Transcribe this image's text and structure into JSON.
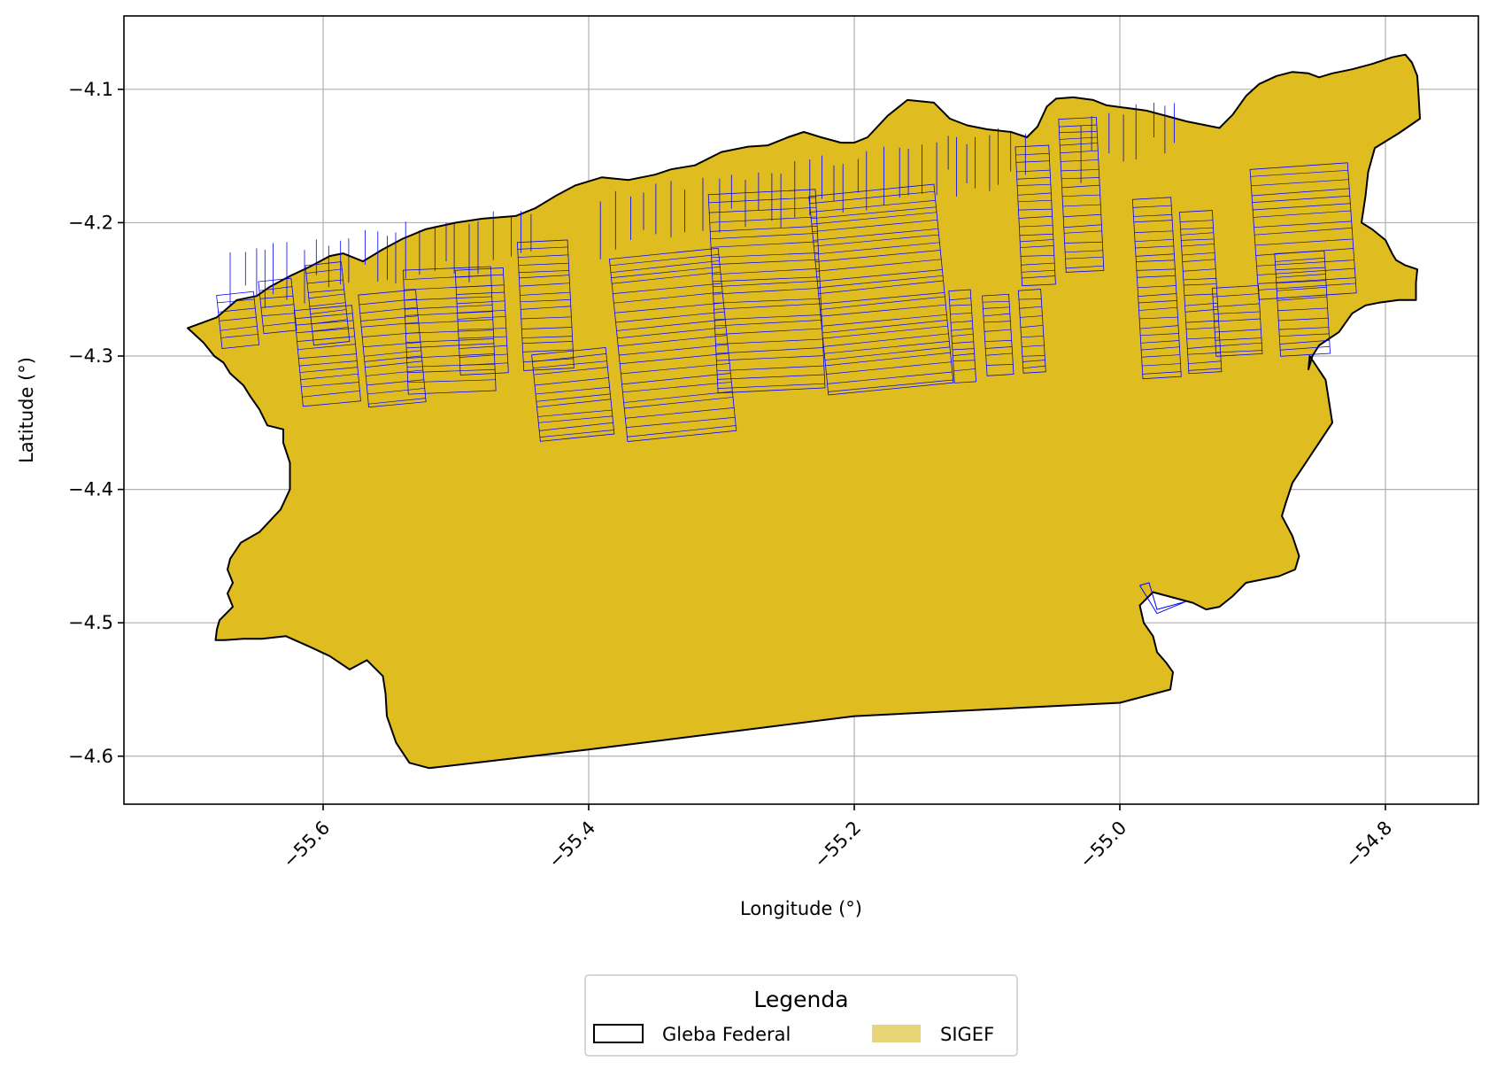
{
  "chart_data": {
    "type": "map",
    "x_label": "Longitude (°)",
    "y_label": "Latitude (°)",
    "xlim": [
      -55.75,
      -54.73
    ],
    "ylim": [
      -4.636,
      -4.045
    ],
    "x_ticks": [
      -55.6,
      -55.4,
      -55.2,
      -55.0,
      -54.8
    ],
    "x_tick_labels": [
      "−55.6",
      "−55.4",
      "−55.2",
      "−55.0",
      "−54.8"
    ],
    "y_ticks": [
      -4.1,
      -4.2,
      -4.3,
      -4.4,
      -4.5,
      -4.6
    ],
    "y_tick_labels": [
      "−4.1",
      "−4.2",
      "−4.3",
      "−4.4",
      "−4.5",
      "−4.6"
    ],
    "grid": true,
    "x_tick_rotation_deg": 45,
    "legend": {
      "title": "Legenda",
      "placement": "bottom-center, below axes",
      "entries": [
        {
          "label": "Gleba Federal",
          "style": "outline"
        },
        {
          "label": "SIGEF",
          "style": "fill"
        }
      ]
    },
    "colors": {
      "gleba_fill": "#dfbd20",
      "gleba_edge": "#000000",
      "sigef_edge": "#0000ff",
      "sigef_legend_patch": "#ead47a",
      "grid": "#b0b0b0"
    },
    "gleba_polygon": [
      [
        -55.702,
        -4.279
      ],
      [
        -55.68,
        -4.271
      ],
      [
        -55.665,
        -4.258
      ],
      [
        -55.65,
        -4.255
      ],
      [
        -55.64,
        -4.248
      ],
      [
        -55.625,
        -4.24
      ],
      [
        -55.61,
        -4.233
      ],
      [
        -55.595,
        -4.225
      ],
      [
        -55.585,
        -4.223
      ],
      [
        -55.57,
        -4.229
      ],
      [
        -55.555,
        -4.22
      ],
      [
        -55.54,
        -4.212
      ],
      [
        -55.523,
        -4.205
      ],
      [
        -55.5,
        -4.2
      ],
      [
        -55.48,
        -4.197
      ],
      [
        -55.455,
        -4.195
      ],
      [
        -55.44,
        -4.189
      ],
      [
        -55.425,
        -4.18
      ],
      [
        -55.41,
        -4.172
      ],
      [
        -55.39,
        -4.166
      ],
      [
        -55.37,
        -4.168
      ],
      [
        -55.35,
        -4.164
      ],
      [
        -55.338,
        -4.16
      ],
      [
        -55.32,
        -4.157
      ],
      [
        -55.3,
        -4.147
      ],
      [
        -55.28,
        -4.143
      ],
      [
        -55.265,
        -4.142
      ],
      [
        -55.25,
        -4.136
      ],
      [
        -55.238,
        -4.132
      ],
      [
        -55.225,
        -4.136
      ],
      [
        -55.21,
        -4.14
      ],
      [
        -55.2,
        -4.14
      ],
      [
        -55.19,
        -4.136
      ],
      [
        -55.175,
        -4.12
      ],
      [
        -55.16,
        -4.108
      ],
      [
        -55.14,
        -4.11
      ],
      [
        -55.128,
        -4.122
      ],
      [
        -55.115,
        -4.127
      ],
      [
        -55.1,
        -4.13
      ],
      [
        -55.082,
        -4.132
      ],
      [
        -55.07,
        -4.136
      ],
      [
        -55.062,
        -4.128
      ],
      [
        -55.055,
        -4.113
      ],
      [
        -55.048,
        -4.107
      ],
      [
        -55.035,
        -4.106
      ],
      [
        -55.02,
        -4.108
      ],
      [
        -55.01,
        -4.112
      ],
      [
        -54.995,
        -4.114
      ],
      [
        -54.98,
        -4.116
      ],
      [
        -54.965,
        -4.12
      ],
      [
        -54.95,
        -4.124
      ],
      [
        -54.935,
        -4.127
      ],
      [
        -54.925,
        -4.129
      ],
      [
        -54.915,
        -4.119
      ],
      [
        -54.905,
        -4.105
      ],
      [
        -54.895,
        -4.096
      ],
      [
        -54.882,
        -4.09
      ],
      [
        -54.87,
        -4.087
      ],
      [
        -54.858,
        -4.088
      ],
      [
        -54.85,
        -4.091
      ],
      [
        -54.84,
        -4.088
      ],
      [
        -54.825,
        -4.085
      ],
      [
        -54.81,
        -4.081
      ],
      [
        -54.795,
        -4.076
      ],
      [
        -54.785,
        -4.074
      ],
      [
        -54.78,
        -4.08
      ],
      [
        -54.776,
        -4.09
      ],
      [
        -54.775,
        -4.105
      ],
      [
        -54.774,
        -4.122
      ],
      [
        -54.79,
        -4.133
      ],
      [
        -54.808,
        -4.144
      ],
      [
        -54.813,
        -4.162
      ],
      [
        -54.815,
        -4.18
      ],
      [
        -54.818,
        -4.2
      ],
      [
        -54.81,
        -4.205
      ],
      [
        -54.8,
        -4.213
      ],
      [
        -54.795,
        -4.223
      ],
      [
        -54.792,
        -4.228
      ],
      [
        -54.785,
        -4.232
      ],
      [
        -54.776,
        -4.235
      ],
      [
        -54.777,
        -4.245
      ],
      [
        -54.777,
        -4.258
      ],
      [
        -54.79,
        -4.258
      ],
      [
        -54.805,
        -4.26
      ],
      [
        -54.815,
        -4.262
      ],
      [
        -54.825,
        -4.268
      ],
      [
        -54.835,
        -4.282
      ],
      [
        -54.85,
        -4.292
      ],
      [
        -54.855,
        -4.3
      ],
      [
        -54.858,
        -4.31
      ],
      [
        -54.857,
        -4.3
      ],
      [
        -54.845,
        -4.318
      ],
      [
        -54.84,
        -4.35
      ],
      [
        -54.85,
        -4.365
      ],
      [
        -54.86,
        -4.38
      ],
      [
        -54.87,
        -4.395
      ],
      [
        -54.875,
        -4.41
      ],
      [
        -54.878,
        -4.42
      ],
      [
        -54.87,
        -4.435
      ],
      [
        -54.865,
        -4.45
      ],
      [
        -54.868,
        -4.46
      ],
      [
        -54.88,
        -4.465
      ],
      [
        -54.895,
        -4.468
      ],
      [
        -54.905,
        -4.47
      ],
      [
        -54.915,
        -4.48
      ],
      [
        -54.925,
        -4.488
      ],
      [
        -54.935,
        -4.49
      ],
      [
        -54.945,
        -4.485
      ],
      [
        -54.96,
        -4.481
      ],
      [
        -54.975,
        -4.477
      ],
      [
        -54.985,
        -4.487
      ],
      [
        -54.982,
        -4.5
      ],
      [
        -54.975,
        -4.51
      ],
      [
        -54.972,
        -4.522
      ],
      [
        -54.965,
        -4.53
      ],
      [
        -54.96,
        -4.537
      ],
      [
        -54.962,
        -4.55
      ],
      [
        -55.0,
        -4.56
      ],
      [
        -55.2,
        -4.57
      ],
      [
        -55.4,
        -4.595
      ],
      [
        -55.52,
        -4.609
      ],
      [
        -55.535,
        -4.605
      ],
      [
        -55.545,
        -4.59
      ],
      [
        -55.552,
        -4.57
      ],
      [
        -55.553,
        -4.553
      ],
      [
        -55.555,
        -4.54
      ],
      [
        -55.567,
        -4.528
      ],
      [
        -55.58,
        -4.535
      ],
      [
        -55.595,
        -4.525
      ],
      [
        -55.61,
        -4.518
      ],
      [
        -55.628,
        -4.51
      ],
      [
        -55.646,
        -4.512
      ],
      [
        -55.66,
        -4.512
      ],
      [
        -55.675,
        -4.513
      ],
      [
        -55.681,
        -4.513
      ],
      [
        -55.68,
        -4.505
      ],
      [
        -55.678,
        -4.498
      ],
      [
        -55.668,
        -4.488
      ],
      [
        -55.672,
        -4.478
      ],
      [
        -55.668,
        -4.47
      ],
      [
        -55.672,
        -4.46
      ],
      [
        -55.67,
        -4.452
      ],
      [
        -55.662,
        -4.44
      ],
      [
        -55.648,
        -4.432
      ],
      [
        -55.632,
        -4.415
      ],
      [
        -55.625,
        -4.4
      ],
      [
        -55.625,
        -4.38
      ],
      [
        -55.63,
        -4.365
      ],
      [
        -55.63,
        -4.355
      ],
      [
        -55.642,
        -4.352
      ],
      [
        -55.648,
        -4.34
      ],
      [
        -55.655,
        -4.33
      ],
      [
        -55.66,
        -4.322
      ],
      [
        -55.67,
        -4.313
      ],
      [
        -55.675,
        -4.305
      ],
      [
        -55.682,
        -4.3
      ],
      [
        -55.69,
        -4.29
      ],
      [
        -55.702,
        -4.279
      ]
    ]
  }
}
